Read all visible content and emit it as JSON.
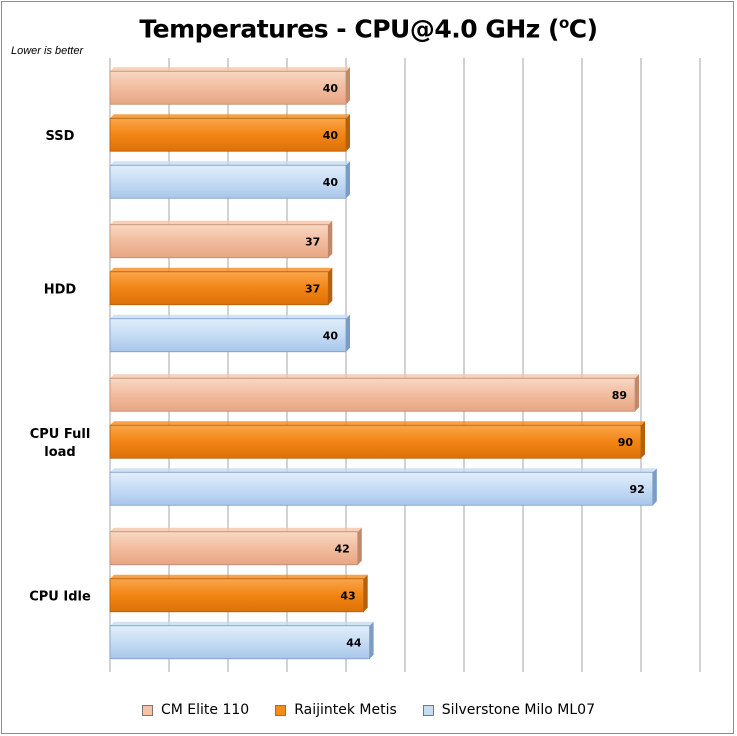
{
  "title": "Temperatures - CPU@4.0 GHz (",
  "title_sup": "o",
  "title_end": "C)",
  "note": "Lower is better",
  "colors": {
    "series": [
      "#f4c4a6",
      "#f58a1e",
      "#c4dcf4"
    ],
    "series_edge": [
      "#c08a6a",
      "#b4600c",
      "#7c9cc4"
    ],
    "grid": "#a6a6a6"
  },
  "chart_data": {
    "type": "bar",
    "orientation": "horizontal",
    "categories": [
      "SSD",
      "HDD",
      "CPU Full load",
      "CPU Idle"
    ],
    "category_lines": [
      [
        "SSD"
      ],
      [
        "HDD"
      ],
      [
        "CPU Full",
        "load"
      ],
      [
        "CPU Idle"
      ]
    ],
    "series": [
      {
        "name": "CM Elite 110",
        "values": [
          40,
          37,
          89,
          42
        ]
      },
      {
        "name": "Raijintek Metis",
        "values": [
          40,
          37,
          90,
          43
        ]
      },
      {
        "name": "Silverstone Milo ML07",
        "values": [
          40,
          40,
          92,
          44
        ]
      }
    ],
    "xlim": [
      0,
      100
    ],
    "grid": true,
    "legend": "bottom"
  }
}
